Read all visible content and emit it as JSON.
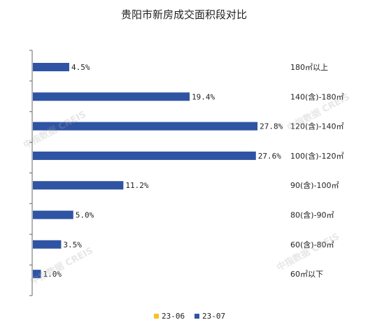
{
  "chart_data": {
    "type": "bar",
    "orientation": "horizontal",
    "title": "贵阳市新房成交面积段对比",
    "categories": [
      "180㎡以上",
      "140(含)-180㎡",
      "120(含)-140㎡",
      "100(含)-120㎡",
      "90(含)-100㎡",
      "80(含)-90㎡",
      "60(含)-80㎡",
      "60㎡以下"
    ],
    "series": [
      {
        "name": "23-06",
        "color": "#F5C326",
        "values": [
          null,
          null,
          null,
          null,
          null,
          null,
          null,
          null
        ],
        "labels": [
          "",
          "",
          "",
          "",
          "",
          "",
          "",
          ""
        ]
      },
      {
        "name": "23-07",
        "color": "#2F54A3",
        "values": [
          4.5,
          19.4,
          27.8,
          27.6,
          11.2,
          5.0,
          3.5,
          1.0
        ],
        "labels": [
          "4.5%",
          "19.4%",
          "27.8%",
          "27.6%",
          "11.2%",
          "5.0%",
          "3.5%",
          "1.0%"
        ]
      }
    ],
    "xlim": [
      0,
      30
    ],
    "grid": false,
    "legend_position": "bottom"
  },
  "watermarks": [
    "中指数据 CREIS",
    "中指数据 CREIS",
    "中指数据 CREIS",
    "中指数据 CREIS"
  ]
}
